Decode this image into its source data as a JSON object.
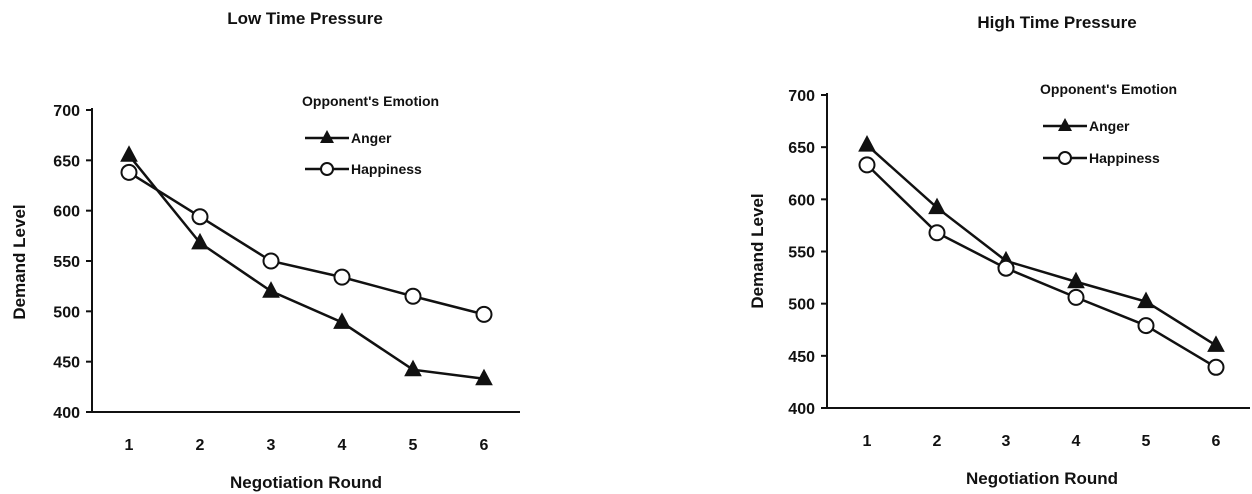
{
  "chart_data": [
    {
      "type": "line",
      "title": "Low Time Pressure",
      "xlabel": "Negotiation Round",
      "ylabel": "Demand Level",
      "categories": [
        "1",
        "2",
        "3",
        "4",
        "5",
        "6"
      ],
      "yticks": [
        "400",
        "450",
        "500",
        "550",
        "600",
        "650",
        "700"
      ],
      "ylim": [
        400,
        700
      ],
      "legend_title": "Opponent's Emotion",
      "series": [
        {
          "name": "Anger",
          "marker": "triangle-filled",
          "values": [
            655,
            568,
            520,
            489,
            442,
            433
          ]
        },
        {
          "name": "Happiness",
          "marker": "circle-open",
          "values": [
            638,
            594,
            550,
            534,
            515,
            497
          ]
        }
      ]
    },
    {
      "type": "line",
      "title": "High Time Pressure",
      "xlabel": "Negotiation Round",
      "ylabel": "Demand Level",
      "categories": [
        "1",
        "2",
        "3",
        "4",
        "5",
        "6"
      ],
      "yticks": [
        "400",
        "450",
        "500",
        "550",
        "600",
        "650",
        "700"
      ],
      "ylim": [
        400,
        700
      ],
      "legend_title": "Opponent's Emotion",
      "series": [
        {
          "name": "Anger",
          "marker": "triangle-filled",
          "values": [
            652,
            592,
            541,
            521,
            502,
            460
          ]
        },
        {
          "name": "Happiness",
          "marker": "circle-open",
          "values": [
            633,
            568,
            534,
            506,
            479,
            439
          ]
        }
      ]
    }
  ]
}
